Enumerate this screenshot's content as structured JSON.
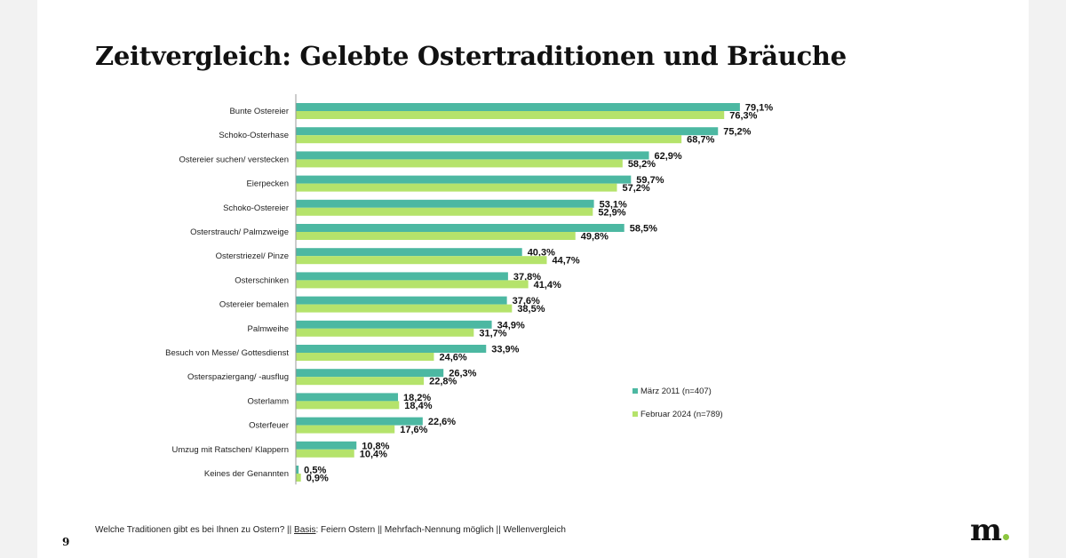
{
  "title": "Zeitvergleich: Gelebte Ostertraditionen und Bräuche",
  "footnote": {
    "question": "Welche Traditionen gibt es bei Ihnen zu Ostern?  || ",
    "basis_label": "Basis",
    "basis_text": ": Feiern Ostern || Mehrfach-Nennung möglich || Wellenvergleich"
  },
  "page_number": "9",
  "logo": {
    "text": "m",
    "accent_color": "#8cc63f"
  },
  "colors": {
    "series1": "#4cb8a2",
    "series2": "#b5e36b",
    "axis": "#999999"
  },
  "chart_data": {
    "type": "bar",
    "orientation": "horizontal",
    "categories": [
      "Bunte Ostereier",
      "Schoko-Osterhase",
      "Ostereier suchen/ verstecken",
      "Eierpecken",
      "Schoko-Ostereier",
      "Osterstrauch/ Palmzweige",
      "Osterstriezel/ Pinze",
      "Osterschinken",
      "Ostereier bemalen",
      "Palmweihe",
      "Besuch von Messe/ Gottesdienst",
      "Osterspaziergang/ -ausflug",
      "Osterlamm",
      "Osterfeuer",
      "Umzug mit Ratschen/ Klappern",
      "Keines der Genannten"
    ],
    "series": [
      {
        "name": "März 2011 (n=407)",
        "values": [
          79.1,
          75.2,
          62.9,
          59.7,
          53.1,
          58.5,
          40.3,
          37.8,
          37.6,
          34.9,
          33.9,
          26.3,
          18.2,
          22.6,
          10.8,
          0.5
        ],
        "labels": [
          "79,1%",
          "75,2%",
          "62,9%",
          "59,7%",
          "53,1%",
          "58,5%",
          "40,3%",
          "37,8%",
          "37,6%",
          "34,9%",
          "33,9%",
          "26,3%",
          "18,2%",
          "22,6%",
          "10,8%",
          "0,5%"
        ]
      },
      {
        "name": "Februar 2024 (n=789)",
        "values": [
          76.3,
          68.7,
          58.2,
          57.2,
          52.9,
          49.8,
          44.7,
          41.4,
          38.5,
          31.7,
          24.6,
          22.8,
          18.4,
          17.6,
          10.4,
          0.9
        ],
        "labels": [
          "76,3%",
          "68,7%",
          "58,2%",
          "57,2%",
          "52,9%",
          "49,8%",
          "44,7%",
          "41,4%",
          "38,5%",
          "31,7%",
          "24,6%",
          "22,8%",
          "18,4%",
          "17,6%",
          "10,4%",
          "0,9%"
        ]
      }
    ],
    "xlim": [
      0,
      100
    ],
    "legend_position": "bottom-right",
    "grid": false
  }
}
